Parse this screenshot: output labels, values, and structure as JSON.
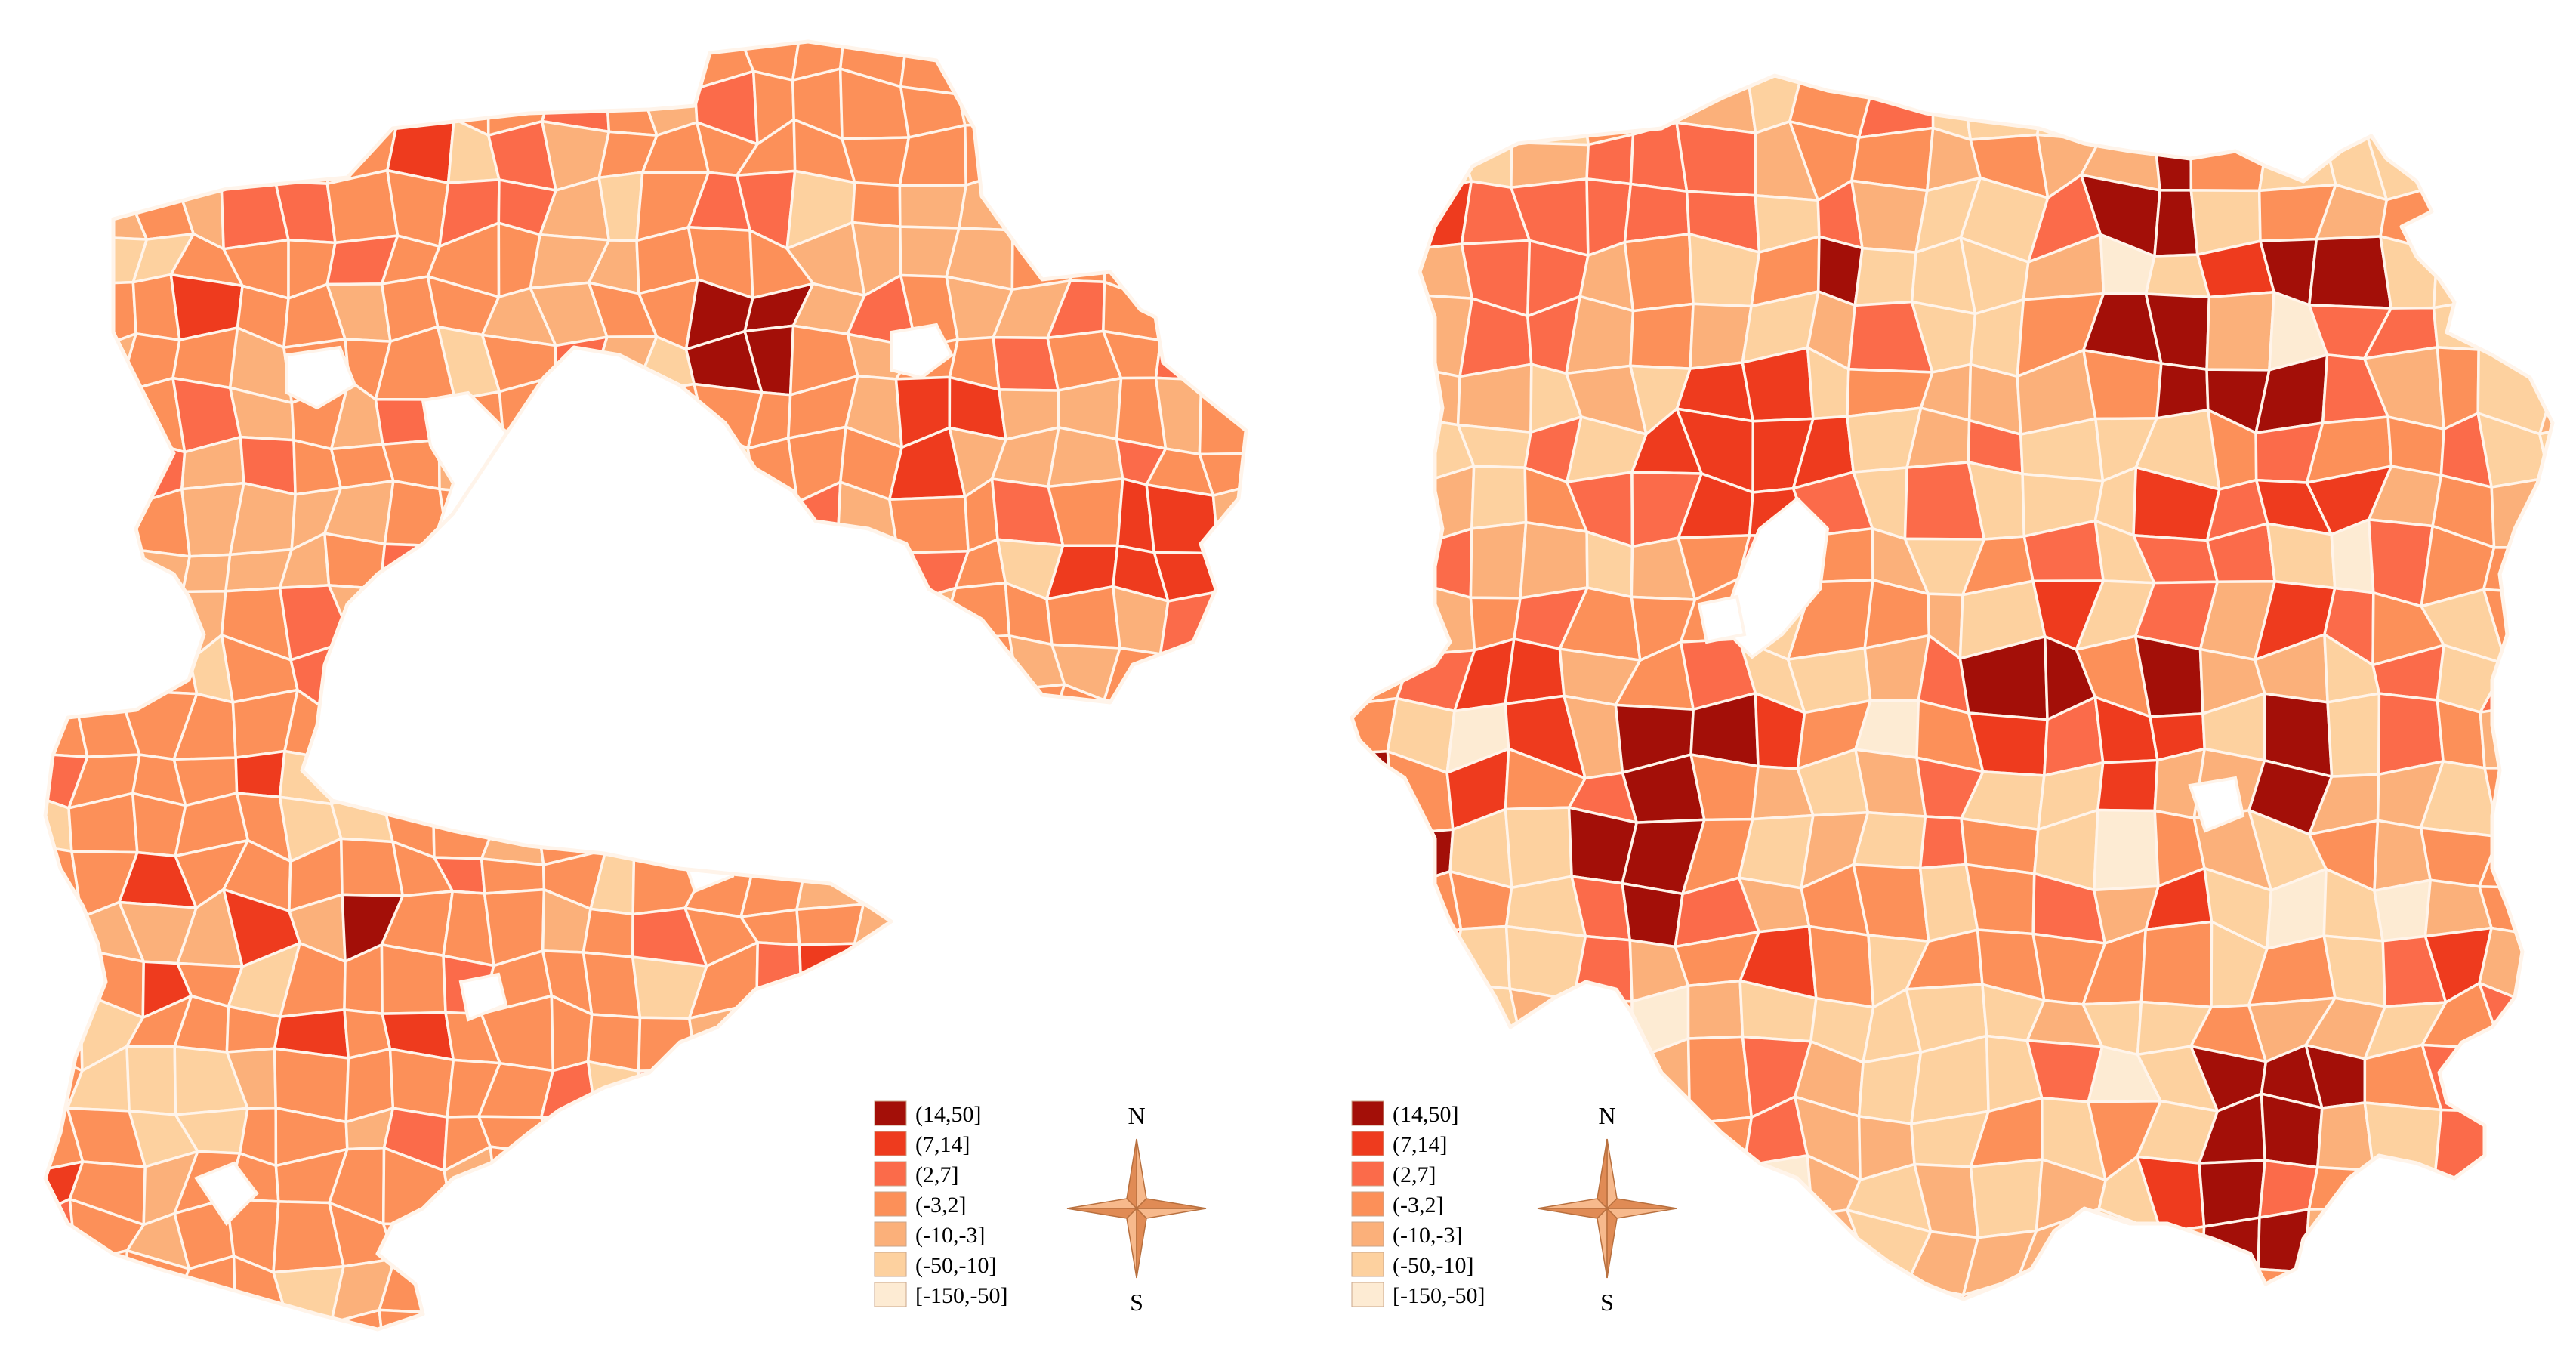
{
  "maps": [
    {
      "id": "left"
    },
    {
      "id": "right"
    }
  ],
  "legend": {
    "classes": [
      {
        "label": "(14,50]",
        "color": "#a30f08"
      },
      {
        "label": "(7,14]",
        "color": "#ee3b1e"
      },
      {
        "label": "(2,7]",
        "color": "#fb6b4a"
      },
      {
        "label": "(-3,2]",
        "color": "#fc9059"
      },
      {
        "label": "(-10,-3]",
        "color": "#fbb07a"
      },
      {
        "label": "(-50,-10]",
        "color": "#fdd19f"
      },
      {
        "label": "[-150,-50]",
        "color": "#fdebd3"
      }
    ]
  },
  "compass": {
    "north": "N",
    "south": "S"
  },
  "colors": {
    "boundary": "#fff4ea",
    "star_fill": "#f7b98c",
    "star_shade": "#e08b55"
  }
}
